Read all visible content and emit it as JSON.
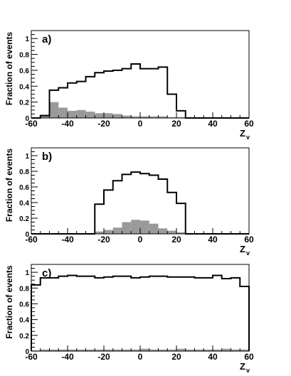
{
  "colors": {
    "outline": "#000000",
    "fill": "#9a9a9a",
    "background": "#ffffff"
  },
  "chart_data": [
    {
      "type": "histogram",
      "panel_label": "a)",
      "ylabel": "Fraction of events",
      "xlabel": "Z",
      "xlabel_subscript": "v",
      "xlim": [
        -60,
        60
      ],
      "ylim": [
        0,
        1.1
      ],
      "x_ticks": [
        "-60",
        "-40",
        "-20",
        "0",
        "20",
        "40",
        "60"
      ],
      "y_ticks": [
        "0",
        "0.2",
        "0.4",
        "0.6",
        "0.8",
        "1"
      ],
      "bin_edges": [
        -60,
        -55,
        -50,
        -45,
        -40,
        -35,
        -30,
        -25,
        -20,
        -15,
        -10,
        -5,
        0,
        5,
        10,
        15,
        20,
        25,
        30,
        35,
        40,
        45,
        50,
        55,
        60
      ],
      "series": [
        {
          "values": [
            0,
            0.03,
            0.35,
            0.38,
            0.44,
            0.46,
            0.52,
            0.57,
            0.59,
            0.6,
            0.62,
            0.68,
            0.62,
            0.62,
            0.64,
            0.3,
            0.09,
            0,
            0,
            0,
            0,
            0,
            0,
            0
          ]
        },
        {
          "values": [
            0,
            0.04,
            0.2,
            0.13,
            0.09,
            0.1,
            0.08,
            0.06,
            0.06,
            0.05,
            0.03,
            0.02,
            0.02,
            0.02,
            0.02,
            0.01,
            0.01,
            0,
            0,
            0,
            0,
            0,
            0,
            0
          ]
        }
      ]
    },
    {
      "type": "histogram",
      "panel_label": "b)",
      "ylabel": "Fraction of events",
      "xlabel": "Z",
      "xlabel_subscript": "v",
      "xlim": [
        -60,
        60
      ],
      "ylim": [
        0,
        1.1
      ],
      "x_ticks": [
        "-60",
        "-40",
        "-20",
        "0",
        "20",
        "40",
        "60"
      ],
      "y_ticks": [
        "0",
        "0.2",
        "0.4",
        "0.6",
        "0.8",
        "1"
      ],
      "bin_edges": [
        -60,
        -55,
        -50,
        -45,
        -40,
        -35,
        -30,
        -25,
        -20,
        -15,
        -10,
        -5,
        0,
        5,
        10,
        15,
        20,
        25,
        30,
        35,
        40,
        45,
        50,
        55,
        60
      ],
      "series": [
        {
          "values": [
            0,
            0,
            0,
            0,
            0,
            0,
            0,
            0.38,
            0.56,
            0.68,
            0.76,
            0.79,
            0.77,
            0.75,
            0.7,
            0.53,
            0.39,
            0,
            0,
            0,
            0,
            0,
            0,
            0
          ]
        },
        {
          "values": [
            0,
            0,
            0,
            0,
            0,
            0,
            0,
            0.03,
            0.05,
            0.08,
            0.15,
            0.18,
            0.17,
            0.13,
            0.07,
            0.04,
            0.02,
            0,
            0,
            0,
            0,
            0,
            0,
            0
          ]
        }
      ]
    },
    {
      "type": "histogram",
      "panel_label": "c)",
      "ylabel": "Fraction of events",
      "xlabel": "Z",
      "xlabel_subscript": "v",
      "xlim": [
        -60,
        60
      ],
      "ylim": [
        0,
        1.1
      ],
      "x_ticks": [
        "-60",
        "-40",
        "-20",
        "0",
        "20",
        "40",
        "60"
      ],
      "y_ticks": [
        "0",
        "0.2",
        "0.4",
        "0.6",
        "0.8",
        "1"
      ],
      "bin_edges": [
        -60,
        -55,
        -50,
        -45,
        -40,
        -35,
        -30,
        -25,
        -20,
        -15,
        -10,
        -5,
        0,
        5,
        10,
        15,
        20,
        25,
        30,
        35,
        40,
        45,
        50,
        55,
        60
      ],
      "series": [
        {
          "values": [
            0.84,
            0.93,
            0.93,
            0.95,
            0.96,
            0.95,
            0.95,
            0.93,
            0.94,
            0.95,
            0.95,
            0.93,
            0.94,
            0.95,
            0.95,
            0.94,
            0.94,
            0.94,
            0.93,
            0.93,
            0.96,
            0.92,
            0.93,
            0.82
          ]
        },
        {
          "values": [
            0.01,
            0.02,
            0.02,
            0.02,
            0.02,
            0.02,
            0.02,
            0.02,
            0.02,
            0.02,
            0.02,
            0.02,
            0.03,
            0.02,
            0.02,
            0.02,
            0.03,
            0.02,
            0.02,
            0.02,
            0.02,
            0.03,
            0.02,
            0.02
          ]
        }
      ]
    }
  ]
}
